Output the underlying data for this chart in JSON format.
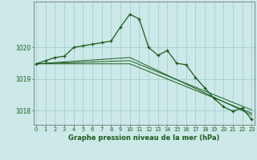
{
  "title": "Graphe pression niveau de la mer (hPa)",
  "bg_color": "#cce8e8",
  "grid_color": "#99cccc",
  "line_color": "#1a5c1a",
  "x_ticks": [
    0,
    1,
    2,
    3,
    4,
    5,
    6,
    7,
    8,
    9,
    10,
    11,
    12,
    13,
    14,
    15,
    16,
    17,
    18,
    19,
    20,
    21,
    22,
    23
  ],
  "y_ticks": [
    1018,
    1019,
    1020
  ],
  "ylim": [
    1017.55,
    1021.45
  ],
  "xlim": [
    -0.3,
    23.3
  ],
  "main_line": [
    1019.48,
    1019.58,
    1019.68,
    1019.72,
    1020.0,
    1020.05,
    1020.1,
    1020.15,
    1020.2,
    1020.65,
    1021.05,
    1020.9,
    1020.0,
    1019.75,
    1019.9,
    1019.5,
    1019.45,
    1019.05,
    1018.72,
    1018.38,
    1018.12,
    1017.98,
    1018.08,
    1017.72
  ],
  "ref_line1": [
    1019.48,
    1019.5,
    1019.52,
    1019.54,
    1019.56,
    1019.58,
    1019.6,
    1019.62,
    1019.64,
    1019.66,
    1019.68,
    1019.54,
    1019.4,
    1019.26,
    1019.12,
    1018.98,
    1018.84,
    1018.7,
    1018.56,
    1018.42,
    1018.28,
    1018.14,
    1018.0,
    1017.86
  ],
  "ref_line2": [
    1019.48,
    1019.49,
    1019.5,
    1019.51,
    1019.52,
    1019.53,
    1019.54,
    1019.55,
    1019.56,
    1019.57,
    1019.58,
    1019.46,
    1019.34,
    1019.22,
    1019.1,
    1018.98,
    1018.86,
    1018.74,
    1018.62,
    1018.5,
    1018.38,
    1018.26,
    1018.14,
    1018.02
  ],
  "ref_line3": [
    1019.48,
    1019.48,
    1019.48,
    1019.48,
    1019.48,
    1019.48,
    1019.48,
    1019.48,
    1019.48,
    1019.48,
    1019.48,
    1019.36,
    1019.24,
    1019.12,
    1019.0,
    1018.88,
    1018.76,
    1018.64,
    1018.52,
    1018.4,
    1018.28,
    1018.16,
    1018.04,
    1017.92
  ]
}
